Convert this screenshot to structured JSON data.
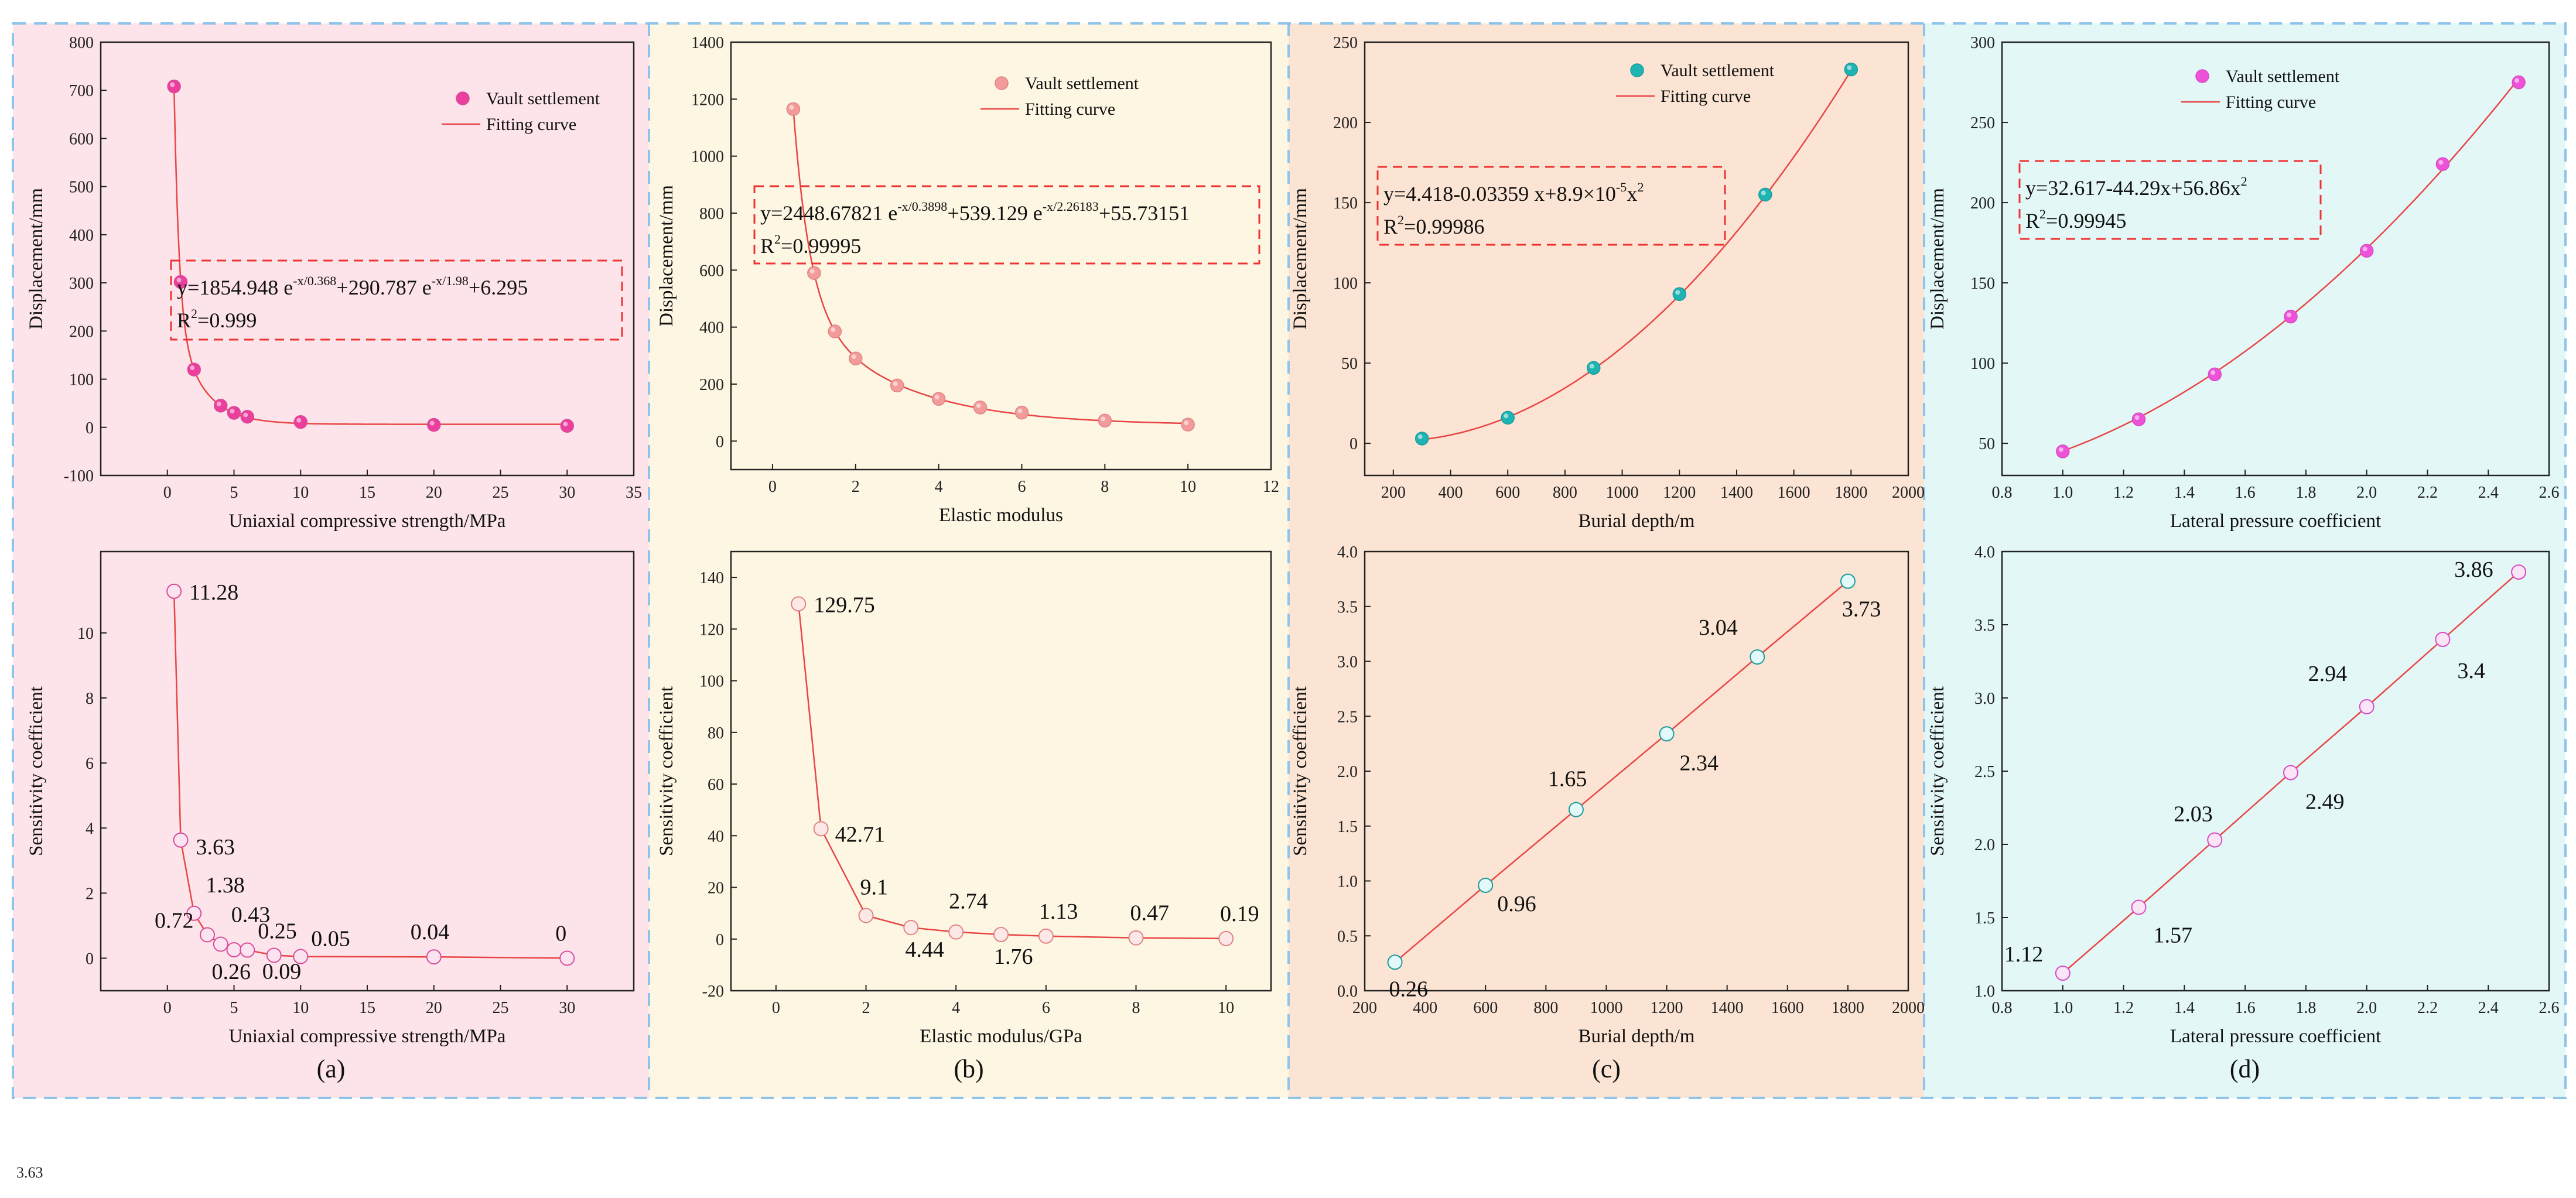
{
  "figure": {
    "stray_label": "3.63",
    "panels": [
      {
        "id": "a",
        "label": "(a)",
        "bg": "#fde4ea",
        "marker_fill": "#ea3f9c",
        "marker_fill_bottom": "#fbe4f0",
        "marker_stroke": "#d94c9a",
        "line_color": "#e84545"
      },
      {
        "id": "b",
        "label": "(b)",
        "bg": "#fdf6e3",
        "marker_fill": "#f39a9a",
        "marker_fill_bottom": "#fde8e8",
        "marker_stroke": "#e08484",
        "line_color": "#e84545"
      },
      {
        "id": "c",
        "label": "(c)",
        "bg": "#fbe4d3",
        "marker_fill": "#1fb3b3",
        "marker_fill_bottom": "#e3f8f8",
        "marker_stroke": "#1a9c9c",
        "line_color": "#e84545"
      },
      {
        "id": "d",
        "label": "(d)",
        "bg": "#e3f7f7",
        "marker_fill": "#ee52d8",
        "marker_fill_bottom": "#fbe4f5",
        "marker_stroke": "#d64dc4",
        "line_color": "#e84545"
      }
    ]
  },
  "chart_data": [
    {
      "panel": "a",
      "position": "top",
      "type": "scatter",
      "xlabel": "Uniaxial compressive strength/MPa",
      "ylabel": "Displacement/mm",
      "xlim": [
        -5,
        35
      ],
      "ylim": [
        -100,
        800
      ],
      "xticks": [
        0,
        5,
        10,
        15,
        20,
        25,
        30,
        35
      ],
      "yticks": [
        -100,
        0,
        100,
        200,
        300,
        400,
        500,
        600,
        700,
        800
      ],
      "series": [
        {
          "name": "Vault settlement",
          "x": [
            0.5,
            1,
            2,
            4,
            5,
            6,
            10,
            20,
            30
          ],
          "y": [
            708,
            302,
            120,
            45,
            30,
            22,
            11,
            5,
            3
          ]
        }
      ],
      "fit": {
        "name": "Fitting curve",
        "model": "exp2",
        "params": [
          1854.948,
          0.368,
          290.787,
          1.98,
          6.295
        ]
      },
      "legend": [
        "Vault settlement",
        "Fitting curve"
      ],
      "equation": {
        "text": "y=1854.948 e",
        "sup1": "-x/0.368",
        "mid": "+290.787 e",
        "sup2": "-x/1.98",
        "end": "+6.295",
        "r2": "=0.999"
      }
    },
    {
      "panel": "a",
      "position": "bottom",
      "type": "line",
      "xlabel": "Uniaxial compressive strength/MPa",
      "ylabel": "Sensitivity coefficient",
      "xlim": [
        -5,
        35
      ],
      "ylim": [
        -1,
        12.5
      ],
      "xticks": [
        0,
        5,
        10,
        15,
        20,
        25,
        30
      ],
      "yticks": [
        0,
        2,
        4,
        6,
        8,
        10
      ],
      "x": [
        0.5,
        1,
        2,
        3,
        4,
        5,
        6,
        8,
        10,
        20,
        30
      ],
      "y": [
        11.28,
        3.63,
        1.38,
        0.72,
        0.43,
        0.26,
        0.25,
        0.09,
        0.05,
        0.04,
        0
      ],
      "labels": [
        "11.28",
        "3.63",
        "1.38",
        "0.72",
        "0.43",
        "0.26",
        "0.25",
        "0.09",
        "0.05",
        "0.04",
        "0"
      ]
    },
    {
      "panel": "b",
      "position": "top",
      "type": "scatter",
      "xlabel": "Elastic modulus",
      "ylabel": "Displacement/mm",
      "xlim": [
        -1,
        12
      ],
      "ylim": [
        -100,
        1400
      ],
      "xticks": [
        0,
        2,
        4,
        6,
        8,
        10,
        12
      ],
      "yticks": [
        0,
        200,
        400,
        600,
        800,
        1000,
        1200,
        1400
      ],
      "series": [
        {
          "name": "Vault settlement",
          "x": [
            0.5,
            1,
            1.5,
            2,
            3,
            4,
            5,
            6,
            8,
            10
          ],
          "y": [
            1165,
            590,
            385,
            290,
            195,
            148,
            118,
            100,
            72,
            58
          ]
        }
      ],
      "fit": {
        "name": "Fitting curve",
        "model": "exp2",
        "params": [
          2448.67821,
          0.3898,
          539.129,
          2.26183,
          55.73151
        ]
      },
      "legend": [
        "Vault settlement",
        "Fitting curve"
      ],
      "equation": {
        "text": "y=2448.67821 e",
        "sup1": "-x/0.3898",
        "mid": "+539.129 e",
        "sup2": "-x/2.26183",
        "end": "+55.73151",
        "r2": "=0.99995"
      }
    },
    {
      "panel": "b",
      "position": "bottom",
      "type": "line",
      "xlabel": "Elastic modulus/GPa",
      "ylabel": "Sensitivity coefficient",
      "xlim": [
        -1,
        11
      ],
      "ylim": [
        -20,
        150
      ],
      "xticks": [
        0,
        2,
        4,
        6,
        8,
        10
      ],
      "yticks": [
        -20,
        0,
        20,
        40,
        60,
        80,
        100,
        120,
        140
      ],
      "x": [
        0.5,
        1,
        2,
        3,
        4,
        5,
        6,
        8,
        10
      ],
      "y": [
        129.75,
        42.71,
        9.1,
        4.44,
        2.74,
        1.76,
        1.13,
        0.47,
        0.19
      ],
      "labels": [
        "129.75",
        "42.71",
        "9.1",
        "4.44",
        "2.74",
        "1.76",
        "1.13",
        "0.47",
        "0.19"
      ]
    },
    {
      "panel": "c",
      "position": "top",
      "type": "scatter",
      "xlabel": "Burial depth/m",
      "ylabel": "Displacement/mm",
      "xlim": [
        100,
        2000
      ],
      "ylim": [
        -20,
        250
      ],
      "xticks": [
        200,
        400,
        600,
        800,
        1000,
        1200,
        1400,
        1600,
        1800,
        2000
      ],
      "yticks": [
        0,
        50,
        100,
        150,
        200,
        250
      ],
      "series": [
        {
          "name": "Vault settlement",
          "x": [
            300,
            600,
            900,
            1200,
            1500,
            1800
          ],
          "y": [
            3,
            16,
            47,
            93,
            155,
            233
          ]
        }
      ],
      "fit": {
        "name": "Fitting curve",
        "model": "poly2",
        "params": [
          4.418,
          -0.03359,
          8.9e-05
        ]
      },
      "legend": [
        "Vault settlement",
        "Fitting curve"
      ],
      "equation": {
        "text": "y=4.418-0.03359 x+8.9×10",
        "sup1": "-5",
        "mid": "x",
        "sup2": "2",
        "end": "",
        "r2": "=0.99986"
      }
    },
    {
      "panel": "c",
      "position": "bottom",
      "type": "line",
      "xlabel": "Burial depth/m",
      "ylabel": "Sensitivity coefficient",
      "xlim": [
        200,
        2000
      ],
      "ylim": [
        0,
        4
      ],
      "xticks": [
        200,
        400,
        600,
        800,
        1000,
        1200,
        1400,
        1600,
        1800,
        2000
      ],
      "yticks": [
        0.0,
        0.5,
        1.0,
        1.5,
        2.0,
        2.5,
        3.0,
        3.5,
        4.0
      ],
      "x": [
        300,
        600,
        900,
        1200,
        1500,
        1800
      ],
      "y": [
        0.26,
        0.96,
        1.65,
        2.34,
        3.04,
        3.73
      ],
      "labels": [
        "0.26",
        "0.96",
        "1.65",
        "2.34",
        "3.04",
        "3.73"
      ]
    },
    {
      "panel": "d",
      "position": "top",
      "type": "scatter",
      "xlabel": "Lateral pressure coefficient",
      "ylabel": "Displacement/mm",
      "xlim": [
        0.8,
        2.6
      ],
      "ylim": [
        30,
        300
      ],
      "xticks": [
        0.8,
        1.0,
        1.2,
        1.4,
        1.6,
        1.8,
        2.0,
        2.2,
        2.4,
        2.6
      ],
      "yticks": [
        50,
        100,
        150,
        200,
        250,
        300
      ],
      "series": [
        {
          "name": "Vault settlement",
          "x": [
            1,
            1.25,
            1.5,
            1.75,
            2,
            2.25,
            2.5
          ],
          "y": [
            45,
            65,
            93,
            129,
            170,
            224,
            275
          ]
        }
      ],
      "fit": {
        "name": "Fitting curve",
        "model": "poly2",
        "params": [
          32.617,
          -44.29,
          56.86
        ]
      },
      "legend": [
        "Vault settlement",
        "Fitting curve"
      ],
      "equation": {
        "text": "y=32.617-44.29x+56.86x",
        "sup1": "2",
        "mid": "",
        "sup2": "",
        "end": "",
        "r2": "=0.99945"
      }
    },
    {
      "panel": "d",
      "position": "bottom",
      "type": "line",
      "xlabel": "Lateral pressure coefficient",
      "ylabel": "Sensitivity coefficient",
      "xlim": [
        0.8,
        2.6
      ],
      "ylim": [
        1.0,
        4.0
      ],
      "xticks": [
        0.8,
        1.0,
        1.2,
        1.4,
        1.6,
        1.8,
        2.0,
        2.2,
        2.4,
        2.6
      ],
      "yticks": [
        1.0,
        1.5,
        2.0,
        2.5,
        3.0,
        3.5,
        4.0
      ],
      "x": [
        1,
        1.25,
        1.5,
        1.75,
        2,
        2.25,
        2.5
      ],
      "y": [
        1.12,
        1.57,
        2.03,
        2.49,
        2.94,
        3.4,
        3.86
      ],
      "labels": [
        "1.12",
        "1.57",
        "2.03",
        "2.49",
        "2.94",
        "3.4",
        "3.86"
      ]
    }
  ]
}
